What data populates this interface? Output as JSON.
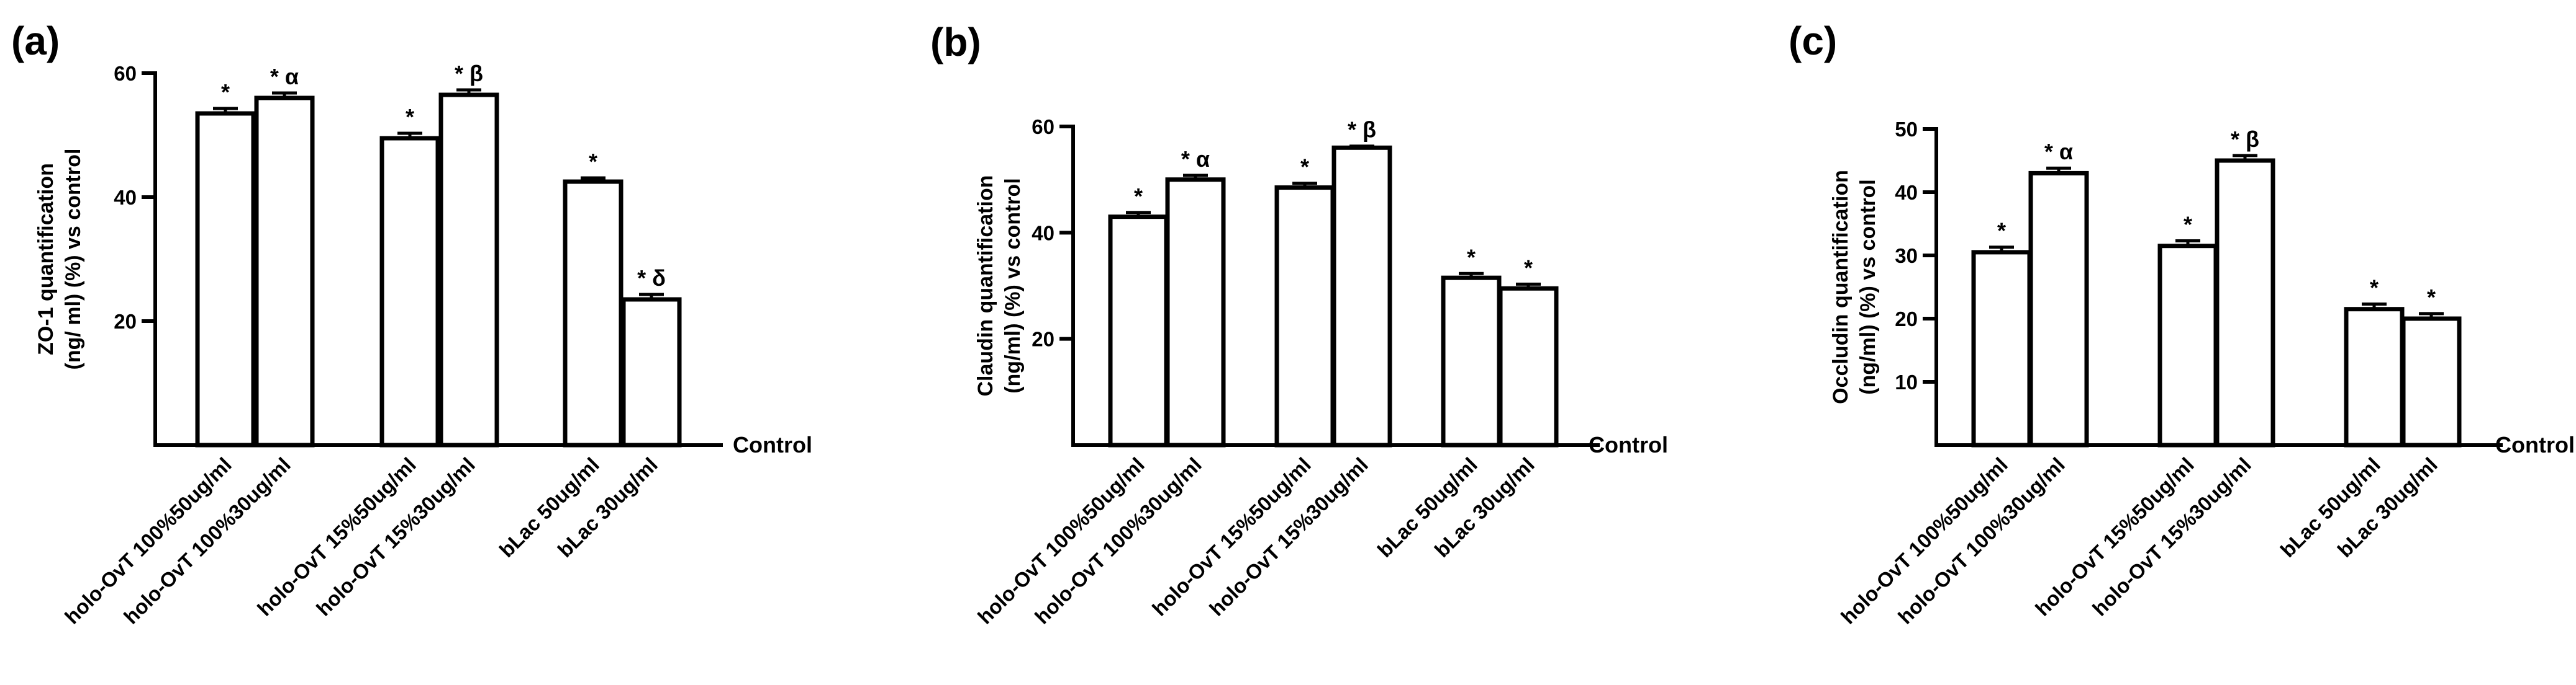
{
  "chart_data": [
    {
      "panel_label": "(a)",
      "type": "bar",
      "ylabel_line1": "ZO-1 quantification",
      "ylabel_line2": "(ng/ ml) (%) vs control",
      "baseline_label": "Control",
      "ylim": [
        0,
        60
      ],
      "yticks": [
        20,
        40,
        60
      ],
      "categories": [
        "holo-OvT 100%50ug/ml",
        "holo-OvT 100%30ug/ml",
        "holo-OvT 15%50ug/ml",
        "holo-OvT 15%30ug/ml",
        "bLac 50ug/ml",
        "bLac 30ug/ml"
      ],
      "values": [
        53.5,
        56.0,
        49.5,
        56.5,
        42.5,
        23.5
      ],
      "errors": [
        0.8,
        0.8,
        0.8,
        0.8,
        0.6,
        0.8
      ],
      "annotations": [
        "*",
        "* α",
        "*",
        "* β",
        "*",
        "* δ"
      ]
    },
    {
      "panel_label": "(b)",
      "type": "bar",
      "ylabel_line1": "Claudin quantification",
      "ylabel_line2": "(ng/ml) (%) vs control",
      "baseline_label": "Control",
      "ylim": [
        0,
        60
      ],
      "yticks": [
        20,
        40,
        60
      ],
      "categories": [
        "holo-OvT 100%50ug/ml",
        "holo-OvT 100%30ug/ml",
        "holo-OvT 15%50ug/ml",
        "holo-OvT 15%30ug/ml",
        "bLac 50ug/ml",
        "bLac 30ug/ml"
      ],
      "values": [
        43.0,
        50.0,
        48.5,
        56.0,
        31.5,
        29.5
      ],
      "errors": [
        0.8,
        0.8,
        0.8,
        0.3,
        0.8,
        0.8
      ],
      "annotations": [
        "*",
        "* α",
        "*",
        "* β",
        "*",
        "*"
      ]
    },
    {
      "panel_label": "(c)",
      "type": "bar",
      "ylabel_line1": "Occludin quantification",
      "ylabel_line2": "(ng/ml) (%) vs control",
      "baseline_label": "Control",
      "ylim": [
        0,
        50
      ],
      "yticks": [
        10,
        20,
        30,
        40,
        50
      ],
      "categories": [
        "holo-OvT 100%50ug/ml",
        "holo-OvT 100%30ug/ml",
        "holo-OvT 15%50ug/ml",
        "holo-OvT 15%30ug/ml",
        "bLac 50ug/ml",
        "bLac 30ug/ml"
      ],
      "values": [
        30.5,
        43.0,
        31.5,
        45.0,
        21.5,
        20.0
      ],
      "errors": [
        0.8,
        0.8,
        0.8,
        0.8,
        0.8,
        0.8
      ],
      "annotations": [
        "*",
        "* α",
        "*",
        "* β",
        "*",
        "*"
      ]
    }
  ]
}
